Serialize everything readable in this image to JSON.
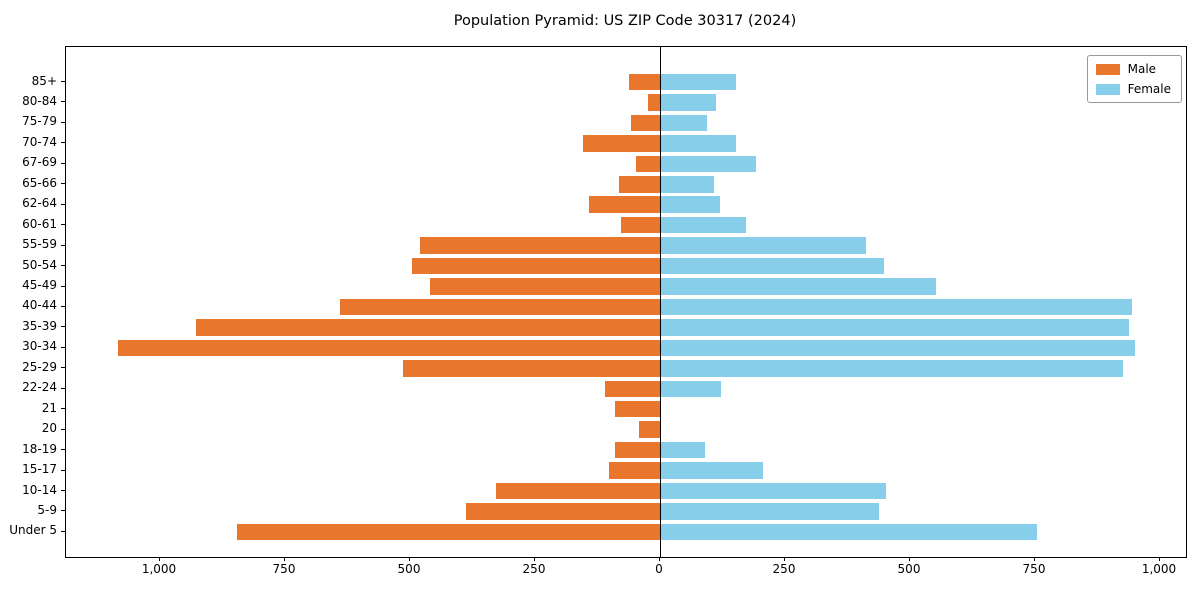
{
  "title": "Population Pyramid: US ZIP Code 30317 (2024)",
  "legend": {
    "male": "Male",
    "female": "Female"
  },
  "colors": {
    "male": "#e8762d",
    "female": "#87ceeb",
    "axis": "#000000"
  },
  "chart_data": {
    "type": "bar",
    "subtype": "population-pyramid",
    "orientation": "horizontal",
    "title": "Population Pyramid: US ZIP Code 30317 (2024)",
    "categories_order": "top-to-bottom",
    "categories": [
      "85+",
      "80-84",
      "75-79",
      "70-74",
      "67-69",
      "65-66",
      "62-64",
      "60-61",
      "55-59",
      "50-54",
      "45-49",
      "40-44",
      "35-39",
      "30-34",
      "25-29",
      "22-24",
      "21",
      "20",
      "18-19",
      "15-17",
      "10-14",
      "5-9",
      "Under 5"
    ],
    "series": [
      {
        "name": "Male",
        "side": "left",
        "color": "#e8762d",
        "values": [
          62,
          25,
          59,
          155,
          49,
          82,
          143,
          79,
          480,
          497,
          460,
          640,
          928,
          1085,
          515,
          111,
          91,
          42,
          91,
          103,
          328,
          389,
          846
        ]
      },
      {
        "name": "Female",
        "side": "right",
        "color": "#87ceeb",
        "values": [
          152,
          112,
          94,
          152,
          192,
          107,
          120,
          171,
          412,
          447,
          551,
          943,
          938,
          950,
          925,
          122,
          0,
          0,
          90,
          206,
          451,
          437,
          753
        ]
      }
    ],
    "xlabel": "",
    "ylabel": "",
    "xlim": [
      -1188,
      1052
    ],
    "x_ticks": [
      -1000,
      -750,
      -500,
      -250,
      0,
      250,
      500,
      750,
      1000
    ],
    "x_tick_labels": [
      "1,000",
      "750",
      "500",
      "250",
      "0",
      "250",
      "500",
      "750",
      "1,000"
    ],
    "grid": false,
    "zero_axis_line": true,
    "legend_position": "upper right",
    "legend_entries": [
      "Male",
      "Female"
    ]
  }
}
